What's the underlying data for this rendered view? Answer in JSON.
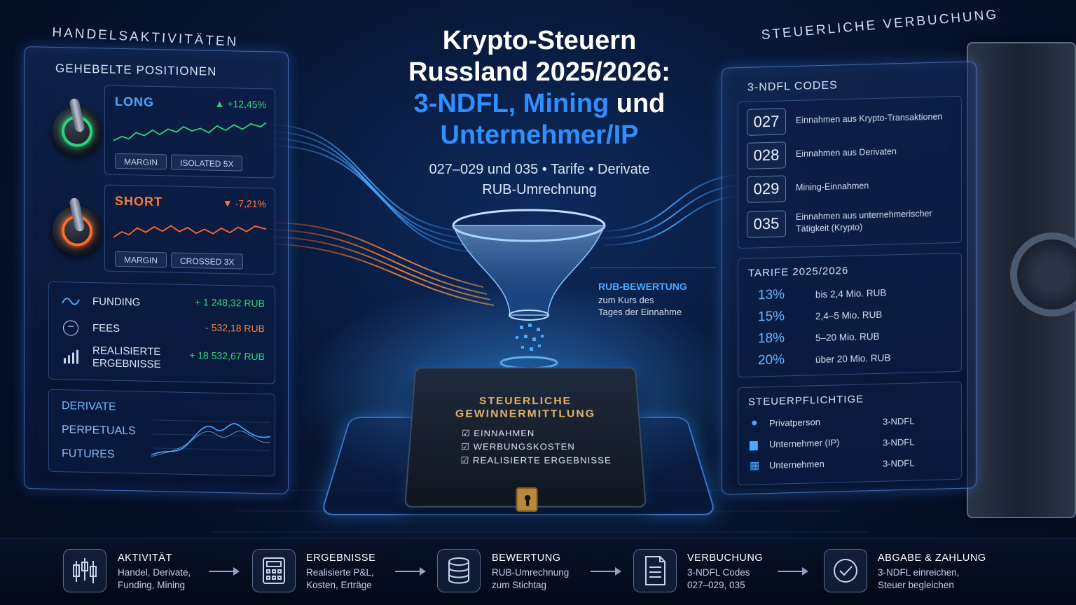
{
  "title": {
    "line1": "Krypto-Steuern",
    "line2": "Russland 2025/2026:",
    "line3_blue": "3-NDFL, Mining",
    "line3_white": " und",
    "line4": "Unternehmer/IP"
  },
  "subtitle": {
    "line1": "027–029 und 035 • Tarife • Derivate",
    "line2": "RUB-Umrechnung"
  },
  "left_heading": "Handelsaktivitäten",
  "left_panel": {
    "title": "Gehebelte Positionen",
    "long": {
      "label": "LONG",
      "change": "▲ +12,45%",
      "pill1": "MARGIN",
      "pill2": "ISOLATED 5X"
    },
    "short": {
      "label": "SHORT",
      "change": "▼ -7,21%",
      "pill1": "MARGIN",
      "pill2": "CROSSED 3X"
    },
    "rows": [
      {
        "label": "FUNDING",
        "value": "+ 1 248,32 RUB"
      },
      {
        "label": "FEES",
        "value": "- 532,18 RUB"
      },
      {
        "label_line1": "REALISIERTE",
        "label_line2": "ERGEBNISSE",
        "value": "+ 18 532,67 RUB"
      }
    ],
    "derivatives": [
      "DERIVATE",
      "PERPETUALS",
      "FUTURES"
    ]
  },
  "center": {
    "rub_title": "RUB-BEWERTUNG",
    "rub_line1": "zum Kurs des",
    "rub_line2": "Tages der Einnahme",
    "book_title_line1": "STEUERLICHE",
    "book_title_line2": "GEWINNERMITTLUNG",
    "book_items": [
      "EINNAHMEN",
      "WERBUNGSKOSTEN",
      "REALISIERTE ERGEBNISSE"
    ]
  },
  "right_heading": "Steuerliche Verbuchung",
  "right_panel": {
    "codes_title": "3-NDFL CODES",
    "codes": [
      {
        "code": "027",
        "text": "Einnahmen aus Krypto-Transaktionen"
      },
      {
        "code": "028",
        "text": "Einnahmen aus Derivaten"
      },
      {
        "code": "029",
        "text": "Mining-Einnahmen"
      },
      {
        "code": "035",
        "text_line1": "Einnahmen aus unternehmerischer",
        "text_line2": "Tätigkeit (Krypto)"
      }
    ],
    "rates_title": "TARIFE 2025/2026",
    "rates": [
      {
        "pct": "13%",
        "text": "bis 2,4 Mio. RUB"
      },
      {
        "pct": "15%",
        "text": "2,4–5 Mio. RUB"
      },
      {
        "pct": "18%",
        "text": "5–20 Mio. RUB"
      },
      {
        "pct": "20%",
        "text": "über 20 Mio. RUB"
      }
    ],
    "taxpayers_title": "STEUERPFLICHTIGE",
    "taxpayers": [
      {
        "label": "Privatperson",
        "form": "3-NDFL"
      },
      {
        "label": "Unternehmer (IP)",
        "form": "3-NDFL"
      },
      {
        "label": "Unternehmen",
        "form": "3-NDFL"
      }
    ]
  },
  "steps": [
    {
      "title": "AKTIVITÄT",
      "line1": "Handel, Derivate,",
      "line2": "Funding, Mining",
      "icon": "candlestick-icon"
    },
    {
      "title": "ERGEBNISSE",
      "line1": "Realisierte P&L,",
      "line2": "Kosten, Erträge",
      "icon": "calculator-icon"
    },
    {
      "title": "BEWERTUNG",
      "line1": "RUB-Umrechnung",
      "line2": "zum Stichtag",
      "icon": "database-icon"
    },
    {
      "title": "VERBUCHUNG",
      "line1": "3-NDFL Codes",
      "line2": "027–029, 035",
      "icon": "document-icon"
    },
    {
      "title": "ABGABE & ZAHLUNG",
      "line1": "3-NDFL einreichen,",
      "line2": "Steuer begleichen",
      "icon": "check-icon"
    }
  ],
  "colors": {
    "blue": "#2f8fff",
    "green": "#2fd27a",
    "orange": "#ff6a2a",
    "navy": "#071633"
  }
}
